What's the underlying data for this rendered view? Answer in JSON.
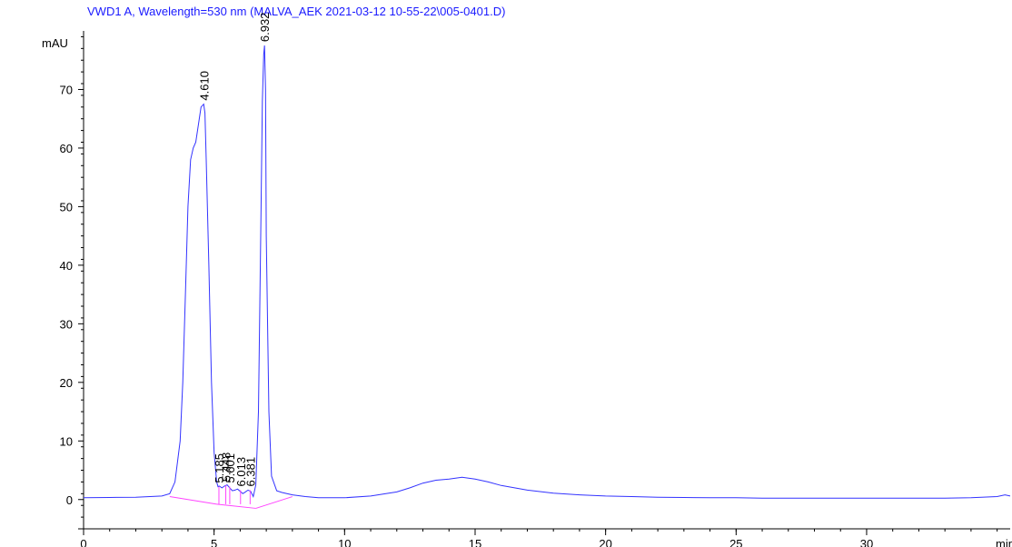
{
  "chart_data": {
    "type": "line",
    "title": "VWD1 A, Wavelength=530 nm (MALVA_AEK 2021-03-12 10-55-22\\005-0401.D)",
    "ylabel": "mAU",
    "xlabel": "min",
    "xlim": [
      0,
      35.5
    ],
    "ylim": [
      -5,
      80
    ],
    "x_ticks": [
      0,
      5,
      10,
      15,
      20,
      25,
      30
    ],
    "x_tick_labels": [
      "0",
      "5",
      "10",
      "15",
      "20",
      "25",
      "30"
    ],
    "y_ticks": [
      0,
      10,
      20,
      30,
      40,
      50,
      60,
      70
    ],
    "y_tick_labels": [
      "0",
      "10",
      "20",
      "30",
      "40",
      "50",
      "60",
      "70"
    ],
    "grid": false,
    "colors": {
      "signal": "#3333ff",
      "baseline": "#ff44ff",
      "title": "#1a1aff",
      "axis": "#000000"
    },
    "series": [
      {
        "x": [
          0,
          1,
          2,
          3,
          3.3,
          3.5,
          3.7,
          3.8,
          3.9,
          4.0,
          4.1,
          4.2,
          4.3,
          4.4,
          4.5,
          4.6,
          4.65,
          4.7,
          4.8,
          4.9,
          5.0,
          5.1,
          5.15,
          5.2,
          5.3,
          5.4,
          5.5,
          5.6,
          5.7,
          5.8,
          5.9,
          6.0,
          6.1,
          6.2,
          6.3,
          6.4,
          6.5,
          6.6,
          6.7,
          6.8,
          6.85,
          6.9,
          6.932,
          6.97,
          7.0,
          7.1,
          7.2,
          7.4,
          7.6,
          8.0,
          8.5,
          9,
          10,
          11,
          12,
          12.5,
          13,
          13.5,
          14,
          14.5,
          15,
          15.5,
          16,
          17,
          18,
          19,
          20,
          21,
          22,
          23,
          24,
          25,
          26,
          27,
          28,
          29,
          30,
          31,
          32,
          33,
          34,
          35,
          35.3,
          35.5
        ],
        "y": [
          0.3,
          0.35,
          0.4,
          0.6,
          1.0,
          3.0,
          10.0,
          20.0,
          35.0,
          50.0,
          58.0,
          60.0,
          61.0,
          64.0,
          67.0,
          67.5,
          66.0,
          58.0,
          40.0,
          20.0,
          8.0,
          3.0,
          2.2,
          2.3,
          2.0,
          2.3,
          2.5,
          2.0,
          1.5,
          1.6,
          1.8,
          1.4,
          1.0,
          1.3,
          1.6,
          1.4,
          0.5,
          2.5,
          15.0,
          50.0,
          68.0,
          76.0,
          77.5,
          70.0,
          45.0,
          15.0,
          4.0,
          1.5,
          1.2,
          0.8,
          0.5,
          0.3,
          0.3,
          0.6,
          1.3,
          2.0,
          2.8,
          3.3,
          3.5,
          3.8,
          3.5,
          3.0,
          2.4,
          1.6,
          1.1,
          0.8,
          0.6,
          0.5,
          0.4,
          0.35,
          0.3,
          0.3,
          0.25,
          0.25,
          0.25,
          0.25,
          0.25,
          0.25,
          0.25,
          0.25,
          0.3,
          0.5,
          0.8,
          0.6
        ]
      }
    ],
    "baselines": [
      {
        "x": [
          3.3,
          5.1
        ],
        "y": [
          0.5,
          -0.8
        ]
      },
      {
        "x": [
          5.1,
          6.6
        ],
        "y": [
          -0.8,
          -1.5
        ]
      },
      {
        "x": [
          6.6,
          8.0
        ],
        "y": [
          -1.5,
          0.5
        ]
      }
    ],
    "peaks": [
      {
        "rt": 4.61,
        "label": "4.610",
        "height": 67.5
      },
      {
        "rt": 5.185,
        "label": "5.185",
        "height": 2.2
      },
      {
        "rt": 5.448,
        "label": "5.448",
        "height": 2.4
      },
      {
        "rt": 5.601,
        "label": "5.601",
        "height": 2.2
      },
      {
        "rt": 6.013,
        "label": "6.013",
        "height": 1.6
      },
      {
        "rt": 6.381,
        "label": "6.381",
        "height": 1.6
      },
      {
        "rt": 6.932,
        "label": "6.932",
        "height": 77.5
      }
    ]
  }
}
